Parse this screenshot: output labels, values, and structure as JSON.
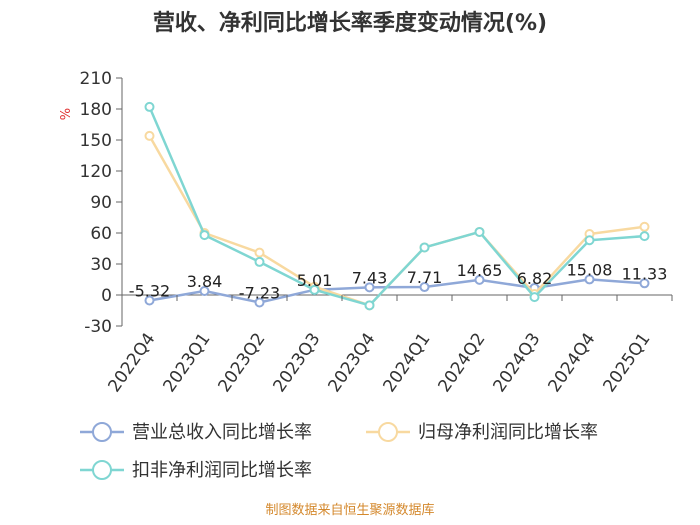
{
  "chart_data": {
    "type": "line",
    "title": "营收、净利同比增长率季度变动情况(%)",
    "ylabel": "%",
    "categories": [
      "2022Q4",
      "2023Q1",
      "2023Q2",
      "2023Q3",
      "2023Q4",
      "2024Q1",
      "2024Q2",
      "2024Q3",
      "2024Q4",
      "2025Q1"
    ],
    "yticks": [
      -30,
      0,
      30,
      60,
      90,
      120,
      150,
      180,
      210
    ],
    "ylim": [
      -30,
      210
    ],
    "series": [
      {
        "name": "营业总收入同比增长率",
        "color": "#8fa8d8",
        "values": [
          -5.32,
          3.84,
          -7.23,
          5.01,
          7.43,
          7.71,
          14.65,
          6.82,
          15.08,
          11.33
        ],
        "labels": [
          "-5.32",
          "3.84",
          "-7.23",
          "5.01",
          "7.43",
          "7.71",
          "14.65",
          "6.82",
          "15.08",
          "11.33"
        ]
      },
      {
        "name": "归母净利润同比增长率",
        "color": "#f8d9a0",
        "values": [
          154,
          60,
          41,
          8,
          -10,
          46,
          61,
          1,
          59,
          66
        ]
      },
      {
        "name": "扣非净利润同比增长率",
        "color": "#7fd6d2",
        "values": [
          182,
          58,
          32,
          5,
          -10,
          46,
          61,
          -2,
          53,
          57
        ]
      }
    ],
    "legend_position": "bottom",
    "source": "制图数据来自恒生聚源数据库"
  }
}
